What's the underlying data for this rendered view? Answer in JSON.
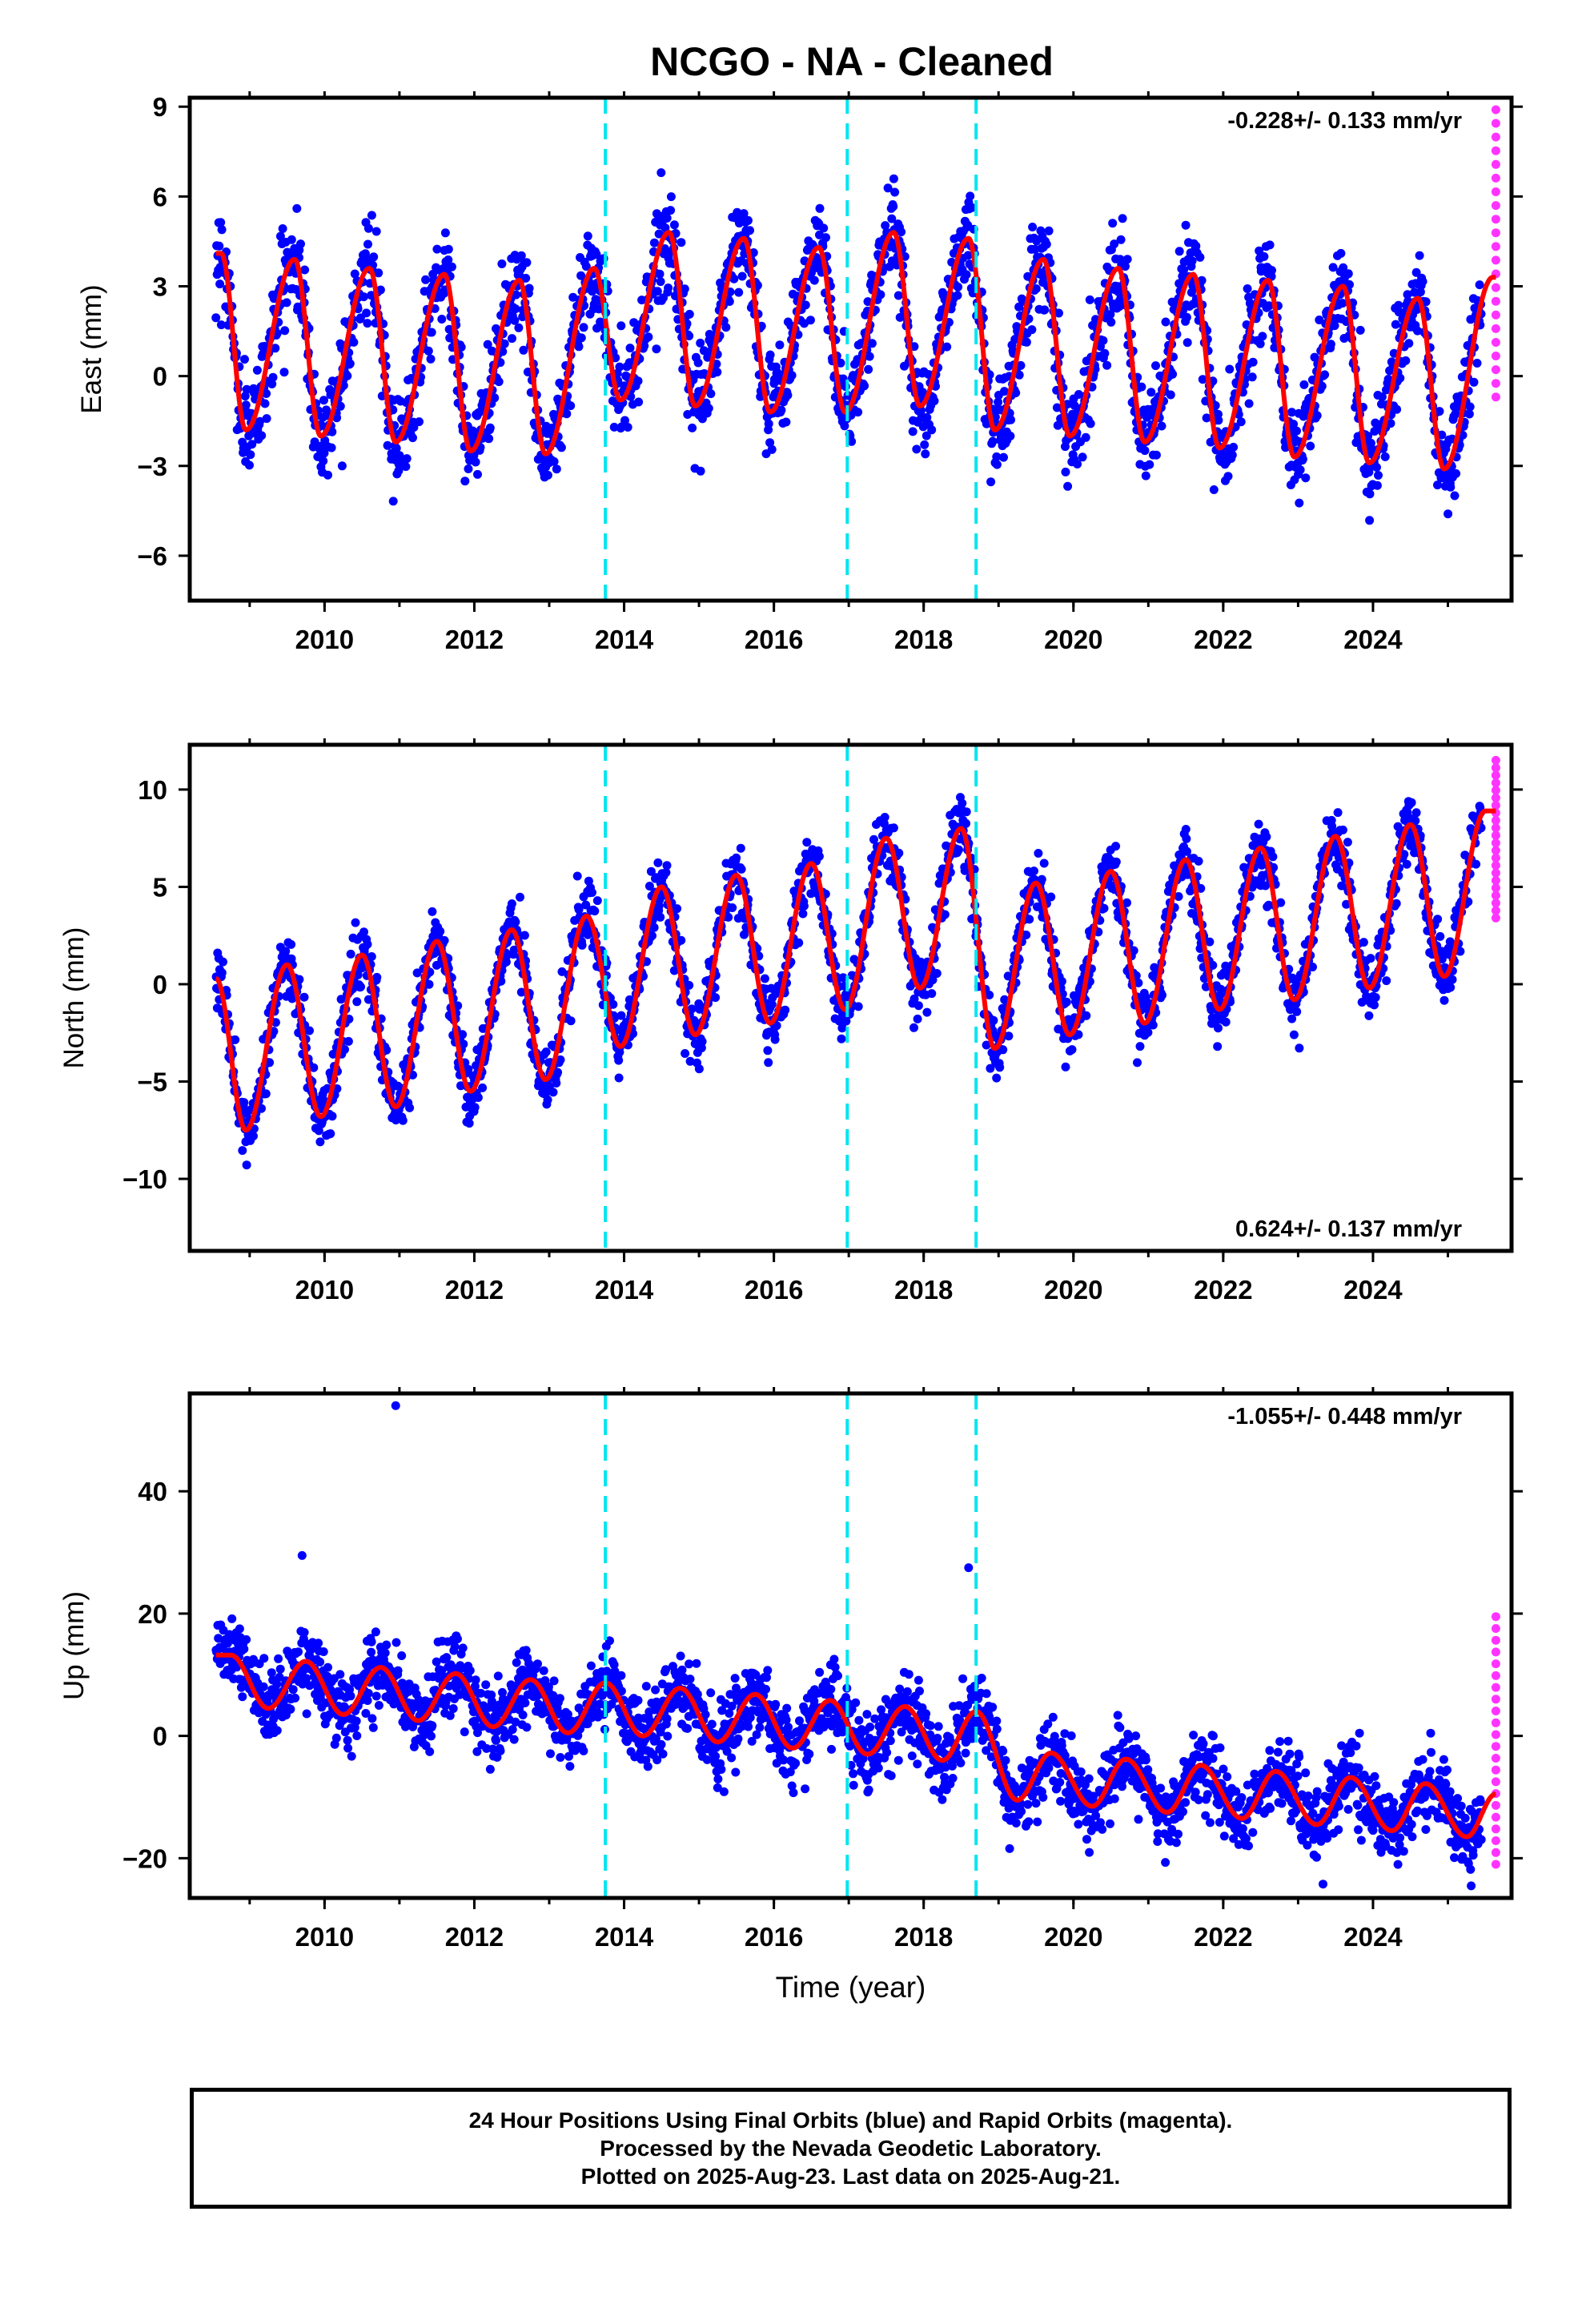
{
  "title": "NCGO  - NA - Cleaned",
  "caption": {
    "line1": "24 Hour Positions Using Final Orbits (blue) and Rapid Orbits (magenta).",
    "line2": "Processed by the Nevada Geodetic Laboratory.",
    "line3": "Plotted on 2025-Aug-23. Last data on 2025-Aug-21."
  },
  "colors": {
    "final_orbits": "#0000ff",
    "rapid_orbits": "#ff33ff",
    "model_fit": "#ff0000",
    "equipment_change_lines": "#00e5ee",
    "axes": "#000000"
  },
  "chart_data": [
    {
      "type": "scatter",
      "panel": "east",
      "ylabel": "East (mm)",
      "xlabel": "",
      "rate_text": "-0.228+/- 0.133 mm/yr",
      "rate_position": "top-right",
      "xlim": [
        2008.2,
        2025.85
      ],
      "ylim": [
        -7.5,
        9.3
      ],
      "xticks": [
        2010,
        2012,
        2014,
        2016,
        2018,
        2020,
        2022,
        2024
      ],
      "yticks": [
        -6,
        -3,
        0,
        3,
        6,
        9
      ],
      "step_lines": [
        2013.75,
        2016.98,
        2018.7
      ],
      "data_start": 2008.55,
      "rapid_start": 2025.45,
      "data_end": 2025.64,
      "seasonal_peaks": [
        [
          2008.62,
          4.1
        ],
        [
          2009.6,
          3.9
        ],
        [
          2010.6,
          3.6
        ],
        [
          2011.6,
          3.4
        ],
        [
          2012.6,
          3.2
        ],
        [
          2013.6,
          3.6
        ],
        [
          2014.6,
          4.8
        ],
        [
          2015.6,
          4.6
        ],
        [
          2016.6,
          4.3
        ],
        [
          2017.6,
          4.8
        ],
        [
          2018.6,
          4.6
        ],
        [
          2019.6,
          3.9
        ],
        [
          2020.6,
          3.6
        ],
        [
          2021.6,
          3.4
        ],
        [
          2022.6,
          3.2
        ],
        [
          2023.6,
          3.0
        ],
        [
          2024.6,
          2.6
        ],
        [
          2025.6,
          3.3
        ]
      ],
      "seasonal_troughs": [
        [
          2008.95,
          -1.8
        ],
        [
          2009.95,
          -2.0
        ],
        [
          2010.95,
          -2.2
        ],
        [
          2011.95,
          -2.5
        ],
        [
          2012.95,
          -2.6
        ],
        [
          2013.95,
          -0.8
        ],
        [
          2014.95,
          -1.0
        ],
        [
          2015.95,
          -1.2
        ],
        [
          2016.95,
          -1.2
        ],
        [
          2017.95,
          -1.0
        ],
        [
          2018.95,
          -1.8
        ],
        [
          2019.95,
          -2.0
        ],
        [
          2020.95,
          -2.2
        ],
        [
          2021.95,
          -2.4
        ],
        [
          2022.95,
          -2.7
        ],
        [
          2023.95,
          -2.9
        ],
        [
          2024.95,
          -3.1
        ]
      ],
      "scatter_sigma": 1.2,
      "rapid_range": [
        -0.7,
        8.9
      ]
    },
    {
      "type": "scatter",
      "panel": "north",
      "ylabel": "North (mm)",
      "xlabel": "",
      "rate_text": "0.624+/- 0.137 mm/yr",
      "rate_position": "bottom-right",
      "xlim": [
        2008.2,
        2025.85
      ],
      "ylim": [
        -13.7,
        12.3
      ],
      "xticks": [
        2010,
        2012,
        2014,
        2016,
        2018,
        2020,
        2022,
        2024
      ],
      "yticks": [
        -10,
        -5,
        0,
        5,
        10
      ],
      "step_lines": [
        2013.75,
        2016.98,
        2018.7
      ],
      "data_start": 2008.55,
      "rapid_start": 2025.45,
      "data_end": 2025.64,
      "seasonal_peaks": [
        [
          2008.55,
          0.3
        ],
        [
          2009.5,
          1.0
        ],
        [
          2010.5,
          1.5
        ],
        [
          2011.5,
          2.2
        ],
        [
          2012.5,
          2.8
        ],
        [
          2013.5,
          3.5
        ],
        [
          2014.5,
          5.0
        ],
        [
          2015.5,
          5.6
        ],
        [
          2016.5,
          6.2
        ],
        [
          2017.5,
          7.5
        ],
        [
          2018.5,
          8.0
        ],
        [
          2019.5,
          5.2
        ],
        [
          2020.5,
          5.8
        ],
        [
          2021.5,
          6.4
        ],
        [
          2022.5,
          7.0
        ],
        [
          2023.5,
          7.6
        ],
        [
          2024.5,
          8.2
        ],
        [
          2025.5,
          8.9
        ]
      ],
      "seasonal_troughs": [
        [
          2008.95,
          -7.5
        ],
        [
          2009.95,
          -6.8
        ],
        [
          2010.95,
          -6.3
        ],
        [
          2011.95,
          -5.5
        ],
        [
          2012.95,
          -4.9
        ],
        [
          2013.95,
          -3.2
        ],
        [
          2014.95,
          -2.6
        ],
        [
          2015.95,
          -2.0
        ],
        [
          2016.95,
          -1.3
        ],
        [
          2017.95,
          -0.2
        ],
        [
          2018.95,
          -3.3
        ],
        [
          2019.95,
          -2.6
        ],
        [
          2020.95,
          -2.0
        ],
        [
          2021.95,
          -1.3
        ],
        [
          2022.95,
          -0.8
        ],
        [
          2023.95,
          -0.2
        ],
        [
          2024.95,
          0.4
        ]
      ],
      "scatter_sigma": 1.3,
      "rapid_range": [
        3.4,
        11.5
      ]
    },
    {
      "type": "scatter",
      "panel": "up",
      "ylabel": "Up (mm)",
      "xlabel": "Time (year)",
      "rate_text": "-1.055+/- 0.448 mm/yr",
      "rate_position": "top-right",
      "xlim": [
        2008.2,
        2025.85
      ],
      "ylim": [
        -26.5,
        56
      ],
      "xticks": [
        2010,
        2012,
        2014,
        2016,
        2018,
        2020,
        2022,
        2024
      ],
      "yticks": [
        -20,
        0,
        20,
        40
      ],
      "step_lines": [
        2013.75,
        2016.98,
        2018.7
      ],
      "data_start": 2008.55,
      "rapid_start": 2025.45,
      "data_end": 2025.64,
      "seasonal_peaks": [
        [
          2008.75,
          13.2
        ],
        [
          2009.75,
          12.2
        ],
        [
          2010.75,
          11.2
        ],
        [
          2011.75,
          10.2
        ],
        [
          2012.75,
          9.2
        ],
        [
          2013.75,
          8.7
        ],
        [
          2014.75,
          7.8
        ],
        [
          2015.75,
          6.8
        ],
        [
          2016.75,
          5.8
        ],
        [
          2017.75,
          4.8
        ],
        [
          2018.7,
          4.0
        ],
        [
          2019.7,
          -2.8
        ],
        [
          2020.7,
          -3.8
        ],
        [
          2021.7,
          -4.8
        ],
        [
          2022.7,
          -5.8
        ],
        [
          2023.7,
          -6.8
        ],
        [
          2024.7,
          -7.8
        ],
        [
          2025.64,
          -9.5
        ]
      ],
      "seasonal_troughs": [
        [
          2009.25,
          4.5
        ],
        [
          2010.25,
          3.5
        ],
        [
          2011.25,
          2.5
        ],
        [
          2012.25,
          1.5
        ],
        [
          2013.25,
          0.5
        ],
        [
          2014.25,
          0.0
        ],
        [
          2015.25,
          -1.0
        ],
        [
          2016.25,
          -2.0
        ],
        [
          2017.25,
          -3.0
        ],
        [
          2018.25,
          -4.0
        ],
        [
          2019.25,
          -10.5
        ],
        [
          2020.25,
          -11.5
        ],
        [
          2021.25,
          -12.5
        ],
        [
          2022.25,
          -13.5
        ],
        [
          2023.25,
          -14.5
        ],
        [
          2024.25,
          -15.5
        ],
        [
          2025.25,
          -16.5
        ]
      ],
      "scatter_sigma": 4.5,
      "rapid_range": [
        -21,
        19.5
      ],
      "outliers": [
        [
          2010.95,
          54.0
        ],
        [
          2018.6,
          27.5
        ],
        [
          2009.7,
          29.5
        ]
      ]
    }
  ]
}
